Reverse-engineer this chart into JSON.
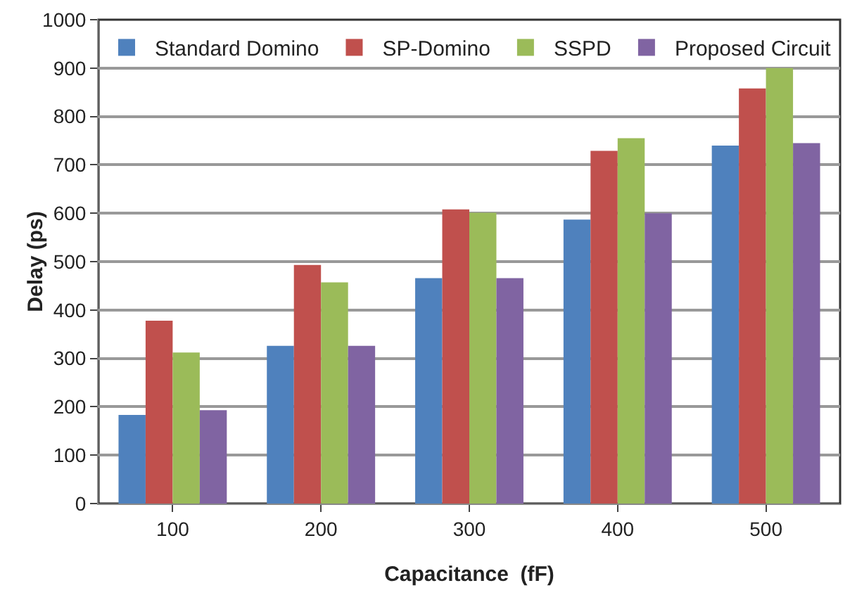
{
  "chart_data": {
    "type": "bar",
    "xlabel": "Capacitance  (fF)",
    "ylabel": "Delay (ps)",
    "categories": [
      "100",
      "200",
      "300",
      "400",
      "500"
    ],
    "series": [
      {
        "name": "Standard Domino",
        "color": "#4f81bd",
        "values": [
          183,
          326,
          466,
          587,
          740
        ]
      },
      {
        "name": "SP-Domino",
        "color": "#c0504d",
        "values": [
          378,
          493,
          608,
          729,
          858
        ]
      },
      {
        "name": "SSPD",
        "color": "#9bbb59",
        "values": [
          312,
          457,
          601,
          755,
          900
        ]
      },
      {
        "name": "Proposed Circuit",
        "color": "#8064a2",
        "values": [
          193,
          326,
          466,
          600,
          745
        ]
      }
    ],
    "ylim": [
      0,
      1000
    ],
    "yticks": [
      0,
      100,
      200,
      300,
      400,
      500,
      600,
      700,
      800,
      900,
      1000
    ],
    "grid": "y",
    "legend": "top"
  }
}
